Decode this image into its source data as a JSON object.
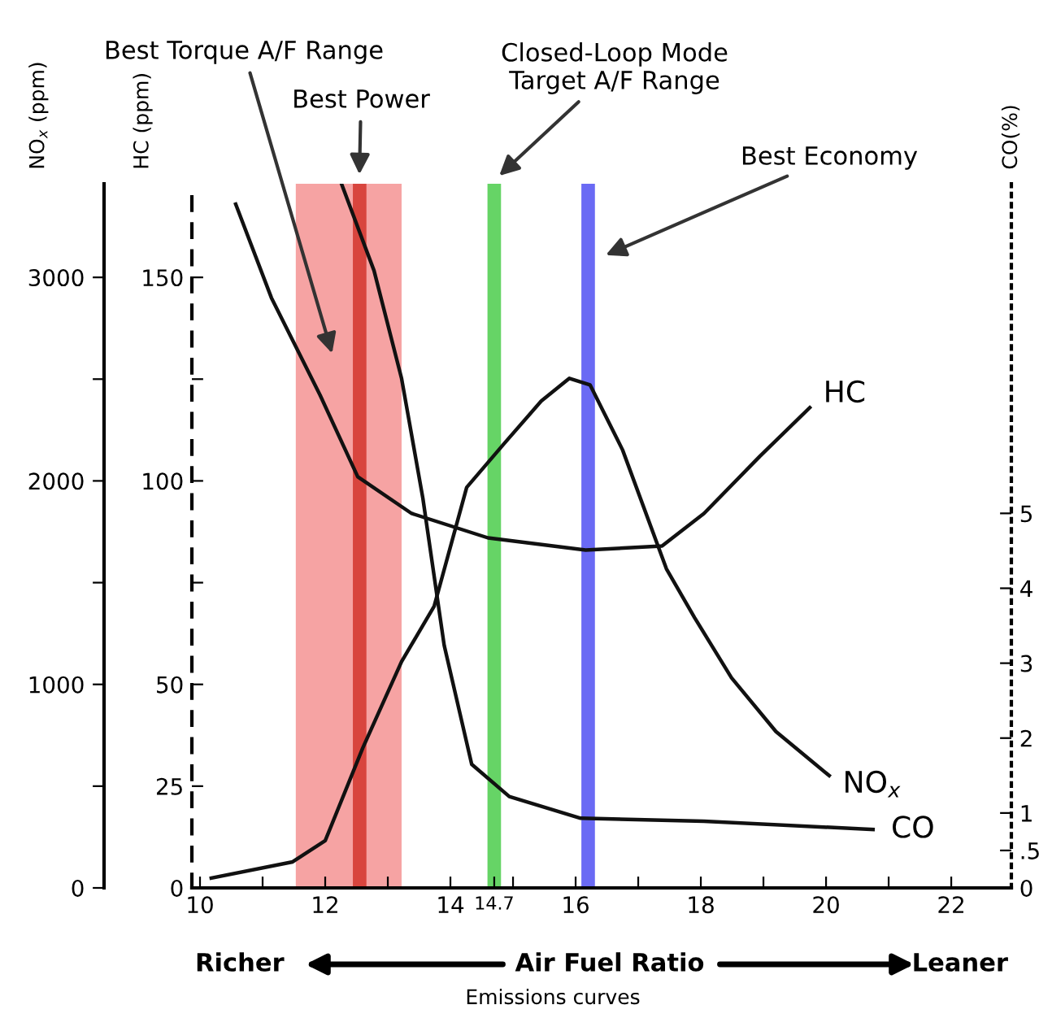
{
  "chart_data": {
    "type": "line",
    "xlabel": "Air Fuel Ratio",
    "ylabel": "NO$_{x}$ (ppm)",
    "y2label": "HC (ppm)",
    "y3label": "CO(%)",
    "xlim": [
      9.87,
      22.96
    ],
    "xticks": [
      10,
      {
        "value": 11,
        "label": null
      },
      12,
      {
        "value": 13,
        "label": null
      },
      14,
      14.7,
      {
        "value": 15,
        "label": null
      },
      16,
      {
        "value": 17,
        "label": null
      },
      18,
      {
        "value": 19,
        "label": null
      },
      20,
      {
        "value": 21,
        "label": null
      },
      22
    ],
    "ylim": [
      0,
      3460
    ],
    "yticks": [
      0,
      {
        "value": 500,
        "label": null
      },
      1000,
      {
        "value": 1500,
        "label": null
      },
      2000,
      {
        "value": 2500,
        "label": null
      },
      3000
    ],
    "y2lim": [
      0,
      173
    ],
    "y2ticks": [
      0,
      25,
      50,
      {
        "value": 75,
        "label": null
      },
      100,
      {
        "value": 125,
        "label": null
      },
      150
    ],
    "y3lim": [
      0,
      9.4
    ],
    "y3ticks": [
      0,
      {
        "value": 0.5,
        "label": ".5"
      },
      1,
      2,
      3,
      4,
      5
    ],
    "grid": false,
    "legend": false,
    "marker": "none",
    "series": [
      {
        "name": "HC",
        "color": "#111111",
        "axis": "y2",
        "x": [
          10.57,
          11.14,
          11.92,
          12.52,
          13.38,
          14.6,
          16.16,
          17.38,
          18.05,
          18.94,
          19.74
        ],
        "values": [
          168,
          145,
          121,
          101,
          92,
          86,
          83,
          84,
          92,
          106,
          118
        ]
      },
      {
        "name": "NO$_{x}$",
        "color": "#111111",
        "axis": "y",
        "x": [
          10.18,
          11.48,
          12.0,
          12.6,
          13.22,
          13.74,
          14.26,
          14.86,
          15.45,
          15.9,
          16.23,
          16.75,
          17.45,
          17.9,
          18.49,
          19.2,
          20.05
        ],
        "values": [
          48,
          128,
          232,
          688,
          1112,
          1384,
          1968,
          2184,
          2392,
          2504,
          2472,
          2152,
          1568,
          1328,
          1032,
          768,
          552
        ]
      },
      {
        "name": "CO",
        "color": "#111111",
        "axis": "y3",
        "x": [
          12.26,
          12.78,
          13.22,
          13.56,
          13.9,
          14.34,
          14.94,
          16.08,
          18.05,
          20.75
        ],
        "values": [
          9.4,
          8.24,
          6.8,
          5.2,
          3.24,
          1.65,
          1.22,
          0.93,
          0.89,
          0.78
        ]
      }
    ],
    "bands": [
      {
        "axis": "x",
        "from": 11.53,
        "to": 13.22,
        "label": "Best Torque A/F Range",
        "color": "#f6a3a3"
      }
    ],
    "ref_lines": [
      {
        "axis": "x",
        "value": 12.55,
        "label": "Best Power",
        "color": "#d8453e"
      },
      {
        "axis": "x",
        "value": 14.7,
        "label": "Closed-Loop Mode\nTarget A/F Range",
        "color": "#66d466"
      },
      {
        "axis": "x",
        "value": 16.2,
        "label": "Best Economy",
        "color": "#6a6af4"
      }
    ],
    "annotations": [
      "Richer",
      "Leaner",
      "Emissions curves"
    ]
  }
}
